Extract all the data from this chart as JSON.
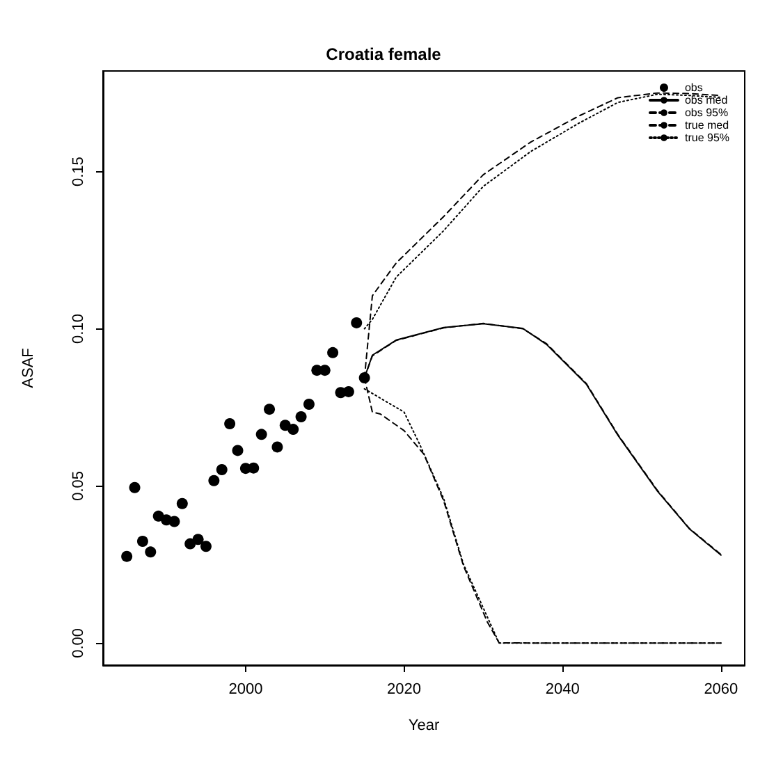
{
  "chart_data": {
    "type": "line",
    "title": "Croatia female",
    "xlabel": "Year",
    "ylabel": "ASAF",
    "xlim": [
      1982,
      2063
    ],
    "xticks": [
      2000,
      2020,
      2040,
      2060
    ],
    "ylim": [
      -0.007,
      0.182
    ],
    "yticks": [
      {
        "value": 0,
        "label": "0.00"
      },
      {
        "value": 0.05,
        "label": "0.05"
      },
      {
        "value": 0.1,
        "label": "0.10"
      },
      {
        "value": 0.15,
        "label": "0.15"
      }
    ],
    "grid": false,
    "legend": "top right",
    "series": [
      {
        "name": "obs",
        "type": "scatter",
        "marker": "circle",
        "color": "#000000",
        "x": [
          1985,
          1986,
          1987,
          1988,
          1989,
          1990,
          1991,
          1992,
          1993,
          1994,
          1995,
          1996,
          1997,
          1998,
          1999,
          2000,
          2001,
          2002,
          2003,
          2004,
          2005,
          2006,
          2007,
          2008,
          2009,
          2010,
          2011,
          2012,
          2013,
          2014,
          2015
        ],
        "values": [
          0.0276,
          0.0495,
          0.0324,
          0.029,
          0.0404,
          0.0392,
          0.0387,
          0.0444,
          0.0316,
          0.033,
          0.0308,
          0.0517,
          0.0552,
          0.0698,
          0.0613,
          0.0556,
          0.0557,
          0.0664,
          0.0744,
          0.0624,
          0.0693,
          0.068,
          0.072,
          0.076,
          0.0868,
          0.0868,
          0.0924,
          0.0797,
          0.08,
          0.1019,
          0.0844
        ]
      },
      {
        "name": "obs med",
        "marker": "none",
        "line_style": "solid",
        "color": "#000000",
        "x": [
          2015,
          2016,
          2019,
          2025,
          2030,
          2035,
          2038,
          2043,
          2047,
          2052,
          2056,
          2060
        ],
        "values": [
          0.0844,
          0.0916,
          0.0964,
          0.1004,
          0.1016,
          0.1001,
          0.095,
          0.0824,
          0.0661,
          0.0483,
          0.0364,
          0.028
        ]
      },
      {
        "name": "obs 95%",
        "marker": "none",
        "line_style": "dashed",
        "color": "#000000",
        "x": [
          2015,
          2016,
          2019,
          2025,
          2030,
          2036,
          2042,
          2047,
          2052,
          2056,
          2060
        ],
        "values": [
          0.0844,
          0.1105,
          0.1209,
          0.1357,
          0.149,
          0.1594,
          0.1676,
          0.1735,
          0.175,
          0.1748,
          0.1742
        ]
      },
      {
        "marker": "none",
        "line_style": "dashed",
        "color": "#000000",
        "x": [
          2015,
          2016,
          2017,
          2020,
          2022.5,
          2025,
          2027.5,
          2030.5,
          2032,
          2040,
          2050,
          2060
        ],
        "values": [
          0.0844,
          0.0735,
          0.0729,
          0.0676,
          0.0601,
          0.0453,
          0.0246,
          0.0068,
          0.0001,
          0,
          0,
          0
        ]
      },
      {
        "name": "true med",
        "marker": "none",
        "line_style": "dashed",
        "color": "#000000",
        "x": [
          2015,
          2016,
          2019,
          2025,
          2030,
          2035,
          2038,
          2043,
          2047,
          2052,
          2056,
          2060
        ],
        "values": [
          0.0844,
          0.0914,
          0.0963,
          0.1003,
          0.1017,
          0.1,
          0.0952,
          0.0826,
          0.0663,
          0.0485,
          0.0365,
          0.0282
        ]
      },
      {
        "name": "true 95%",
        "marker": "none",
        "line_style": "dotted",
        "color": "#000000",
        "x": [
          2015,
          2016,
          2019,
          2025,
          2030,
          2036,
          2042,
          2047,
          2052,
          2056,
          2060
        ],
        "values": [
          0.1,
          0.103,
          0.1164,
          0.1312,
          0.1453,
          0.1564,
          0.1653,
          0.172,
          0.1746,
          0.1742,
          0.1736
        ]
      },
      {
        "marker": "none",
        "line_style": "dotted",
        "color": "#000000",
        "x": [
          2015,
          2020,
          2022,
          2025,
          2027.5,
          2030.5,
          2032,
          2040,
          2050,
          2060
        ],
        "values": [
          0.0809,
          0.0735,
          0.0631,
          0.046,
          0.0251,
          0.0084,
          0,
          0,
          0,
          0
        ]
      }
    ]
  }
}
